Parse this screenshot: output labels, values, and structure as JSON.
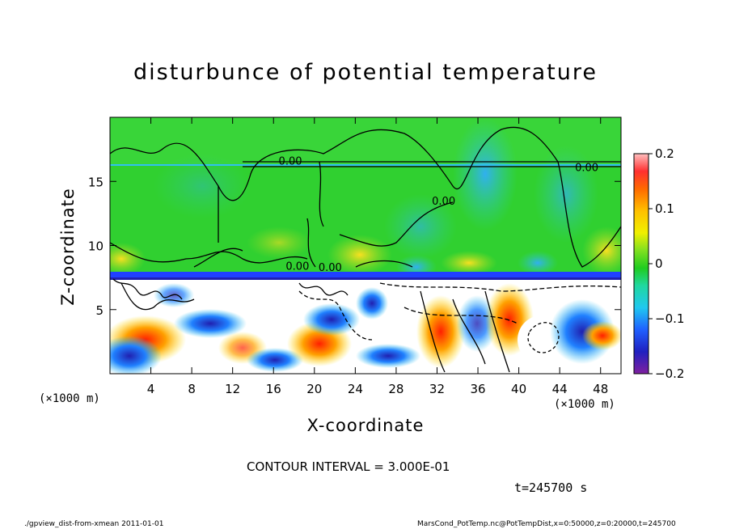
{
  "chart_data": {
    "type": "heatmap",
    "title": "disturbunce of potential temperature",
    "xlabel": "X-coordinate",
    "ylabel": "Z-coordinate",
    "x_unit_label": "(×1000 m)",
    "xlim": [
      0,
      50
    ],
    "ylim": [
      0,
      20
    ],
    "x_ticks": [
      "4",
      "8",
      "12",
      "16",
      "20",
      "24",
      "28",
      "32",
      "36",
      "40",
      "44",
      "48"
    ],
    "x_tick_values": [
      4,
      8,
      12,
      16,
      20,
      24,
      28,
      32,
      36,
      40,
      44,
      48
    ],
    "y_ticks": [
      "5",
      "10",
      "15"
    ],
    "y_tick_values": [
      5,
      10,
      15
    ],
    "colorbar": {
      "ticks": [
        "0.2",
        "0.1",
        "0",
        "−0.1",
        "−0.2"
      ],
      "tick_values": [
        0.2,
        0.1,
        0,
        -0.1,
        -0.2
      ],
      "range": [
        -0.2,
        0.2
      ]
    },
    "contour_labels": [
      "0.00",
      "0.00",
      "0.00",
      "0.00",
      "0.00"
    ],
    "contour_interval": "CONTOUR INTERVAL = 3.000E-01"
  },
  "time_label": "t=245700 s",
  "footer_left": "./gpview_dist-from-xmean   2011-01-01",
  "footer_right": "MarsCond_PotTemp.nc@PotTempDist,x=0:50000,z=0:20000,t=245700",
  "colors": {
    "positive_high": "#ff0000",
    "zero": "#22dd22",
    "negative_low": "#2020c0",
    "background": "#ffffff"
  }
}
